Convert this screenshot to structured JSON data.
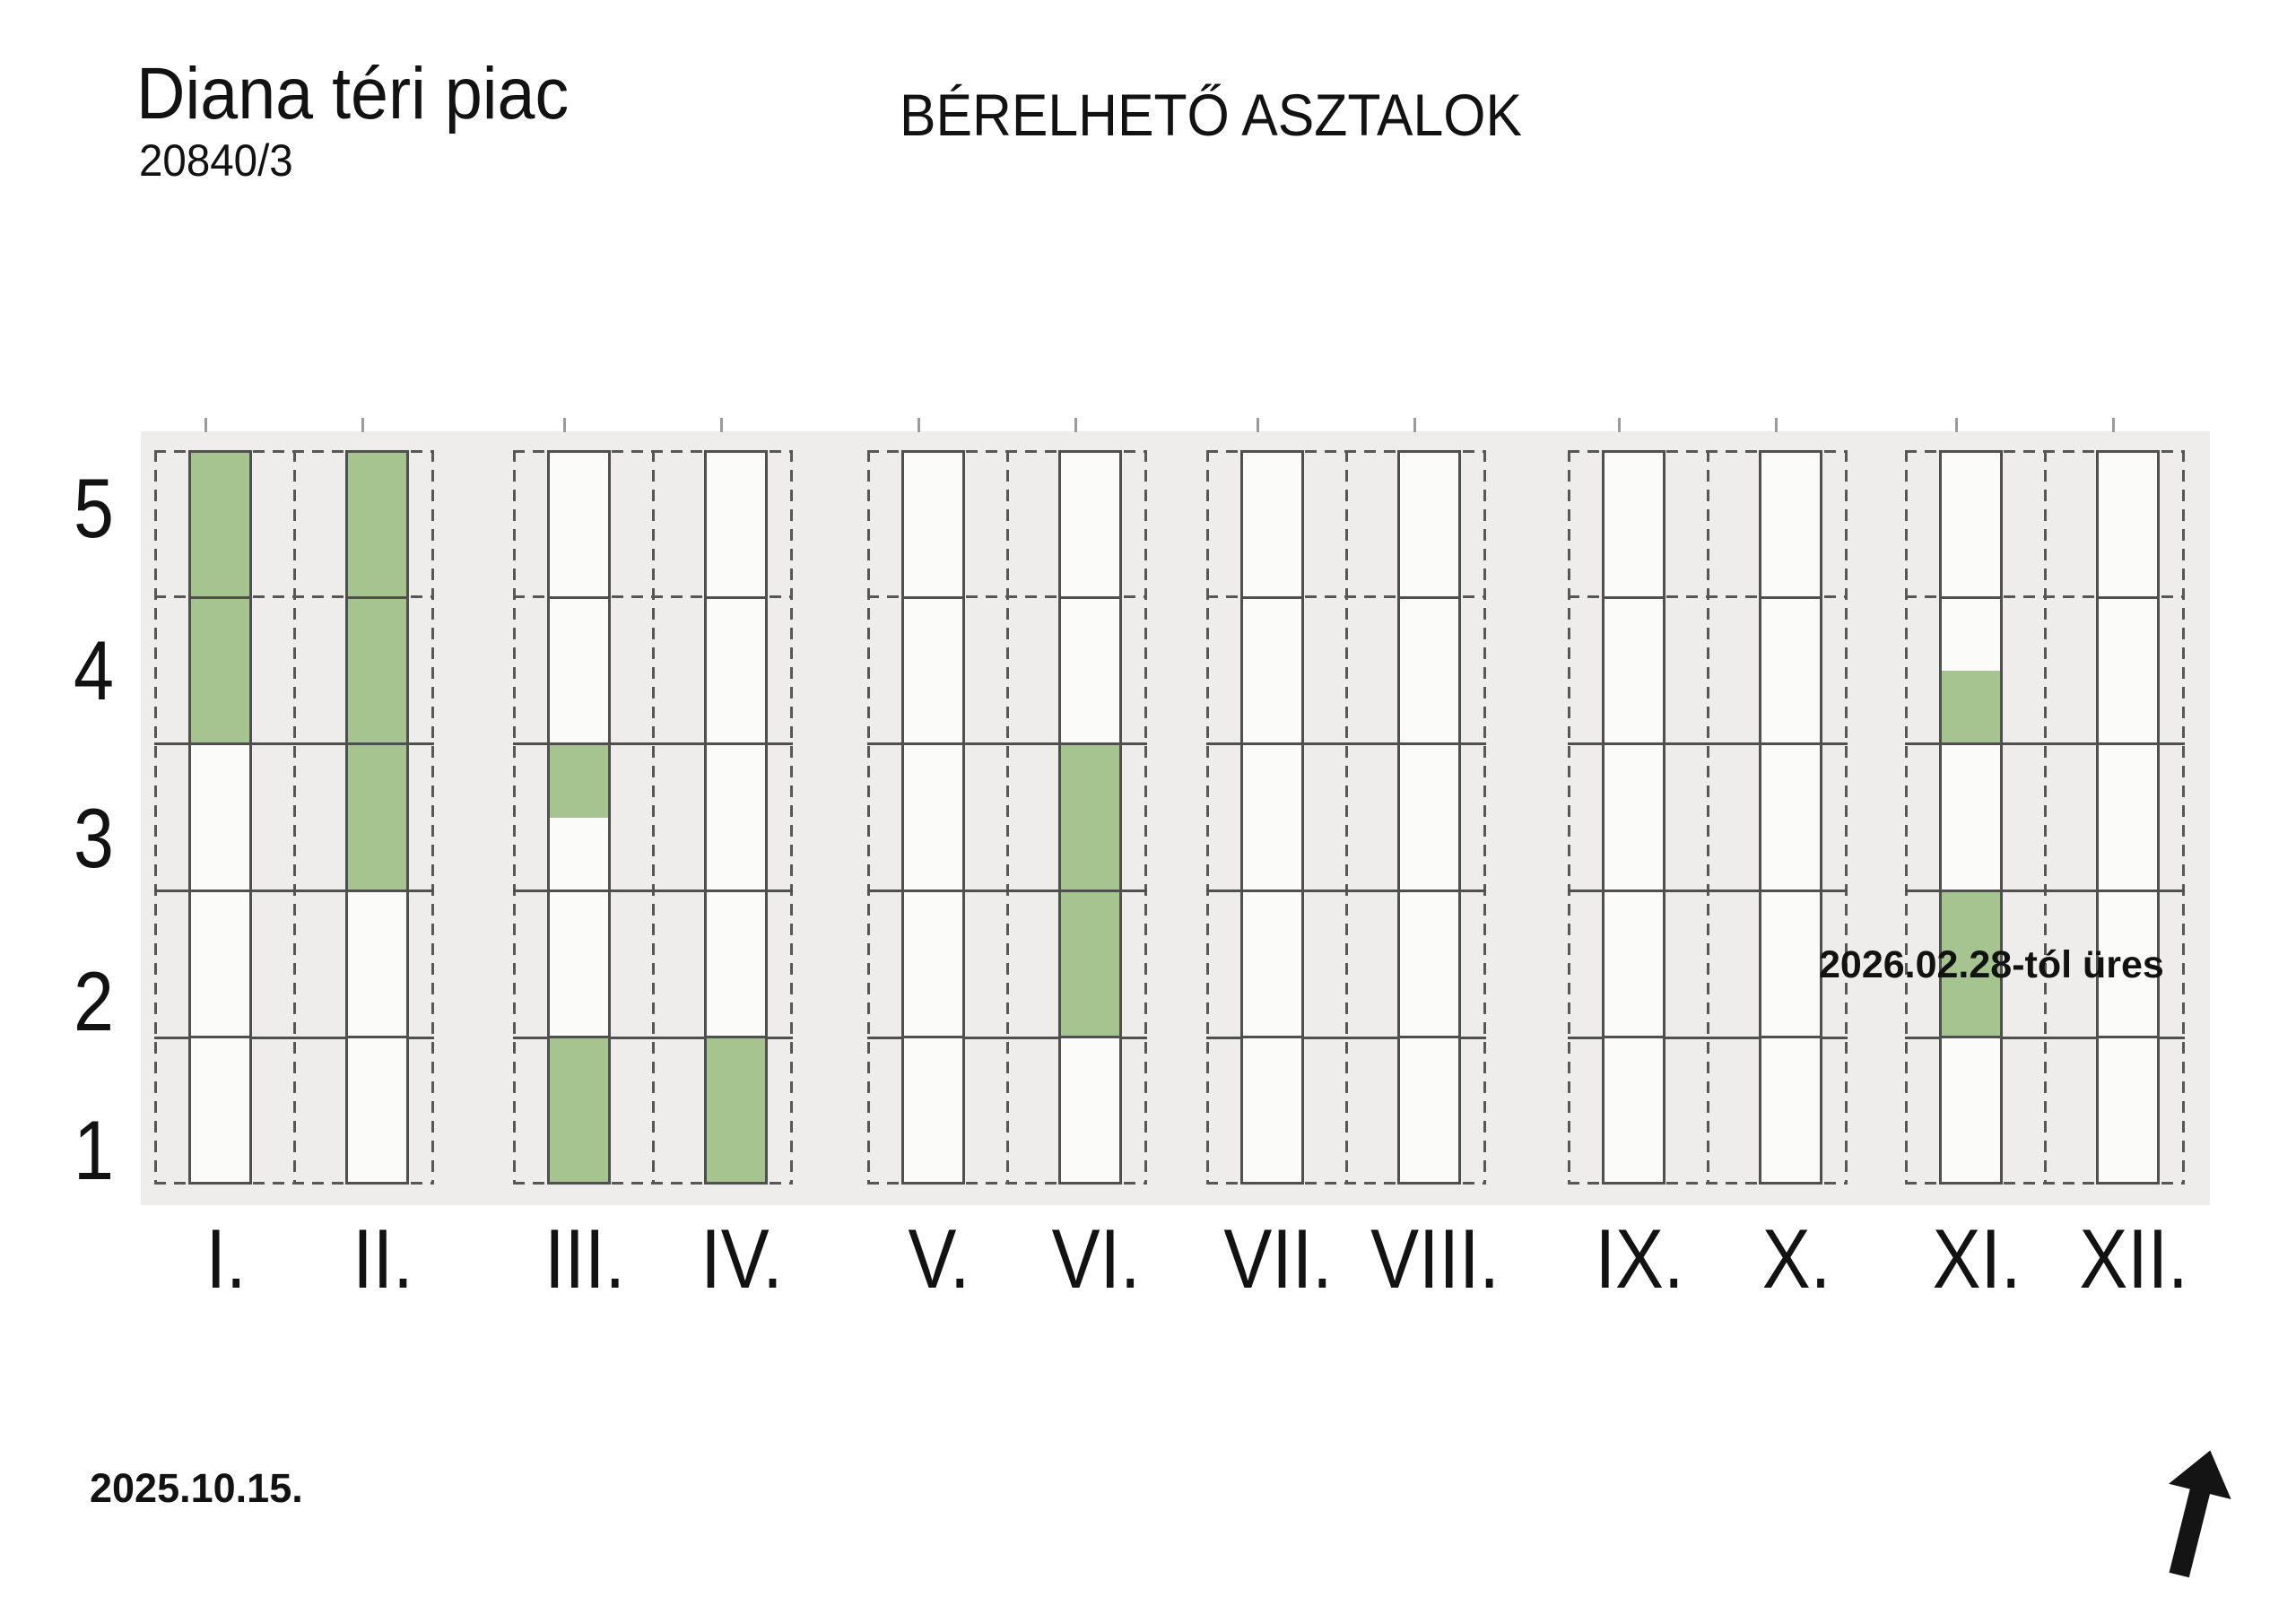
{
  "title": "Diana téri piac",
  "parcel_number": "20840/3",
  "header_title": "BÉRELHETŐ ASZTALOK",
  "annotation_note": "2026.02.28-tól üres",
  "date_stamp": "2025.10.15.",
  "row_labels": [
    "5",
    "4",
    "3",
    "2",
    "1"
  ],
  "columns": [
    {
      "label": "I.",
      "green_rows": [
        5,
        4
      ],
      "green_half_rows": []
    },
    {
      "label": "II.",
      "green_rows": [
        5,
        4,
        3
      ],
      "green_half_rows": []
    },
    {
      "label": "III.",
      "green_rows": [
        1
      ],
      "green_half_rows": [
        {
          "row": 3,
          "half": "top"
        }
      ]
    },
    {
      "label": "IV.",
      "green_rows": [
        1
      ],
      "green_half_rows": []
    },
    {
      "label": "V.",
      "green_rows": [],
      "green_half_rows": []
    },
    {
      "label": "VI.",
      "green_rows": [
        3,
        2
      ],
      "green_half_rows": []
    },
    {
      "label": "VII.",
      "green_rows": [],
      "green_half_rows": []
    },
    {
      "label": "VIII.",
      "green_rows": [],
      "green_half_rows": []
    },
    {
      "label": "IX.",
      "green_rows": [],
      "green_half_rows": []
    },
    {
      "label": "X.",
      "green_rows": [],
      "green_half_rows": []
    },
    {
      "label": "XI.",
      "green_rows": [
        2
      ],
      "green_half_rows": [
        {
          "row": 4,
          "half": "bottom"
        }
      ]
    },
    {
      "label": "XII.",
      "green_rows": [],
      "green_half_rows": []
    }
  ],
  "icons": {
    "north_arrow": "north-arrow"
  },
  "colors": {
    "green_fill": "#a5c490",
    "band_gray": "#eeedec",
    "cell_white": "#fbfbfa",
    "line_gray": "#4f4f4f",
    "text_ink": "#121212"
  }
}
